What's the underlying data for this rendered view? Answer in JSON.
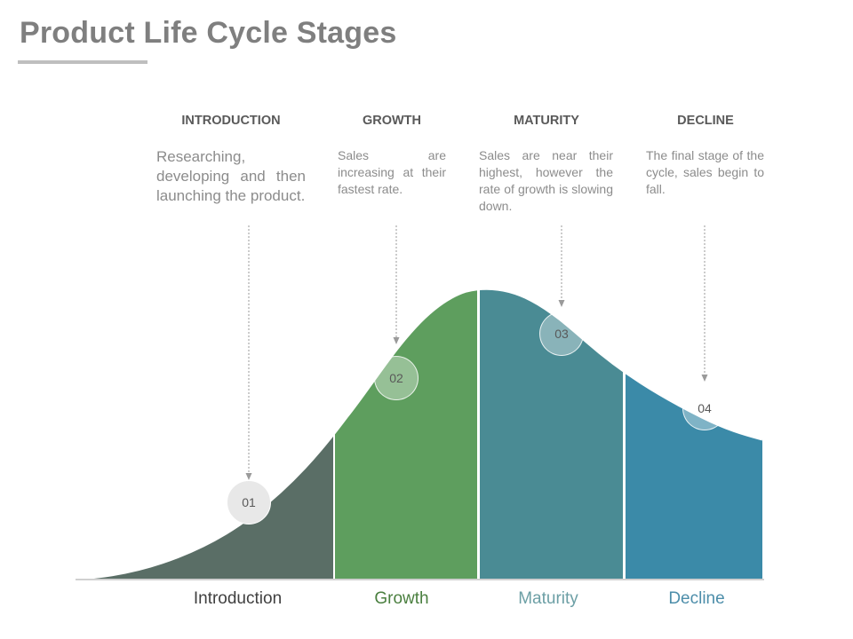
{
  "title": "Product Life Cycle Stages",
  "stages": [
    {
      "heading": "INTRODUCTION",
      "description": "Researching, developing and then launching the product.",
      "number": "01",
      "label": "Introduction",
      "color": "#5a6e66",
      "label_color": "#404040"
    },
    {
      "heading": "GROWTH",
      "description": "Sales are increasing at their fastest rate.",
      "number": "02",
      "label": "Growth",
      "color": "#5e9e5e",
      "label_color": "#4a7f3f"
    },
    {
      "heading": "MATURITY",
      "description": "Sales are near their highest, however the rate of growth is slowing down.",
      "number": "03",
      "label": "Maturity",
      "color": "#4a8b94",
      "label_color": "#6c9fa5"
    },
    {
      "heading": "DECLINE",
      "description": "The final stage of the cycle, sales begin to fall.",
      "number": "04",
      "label": "Decline",
      "color": "#3b8aa8",
      "label_color": "#4d8eaa"
    }
  ]
}
